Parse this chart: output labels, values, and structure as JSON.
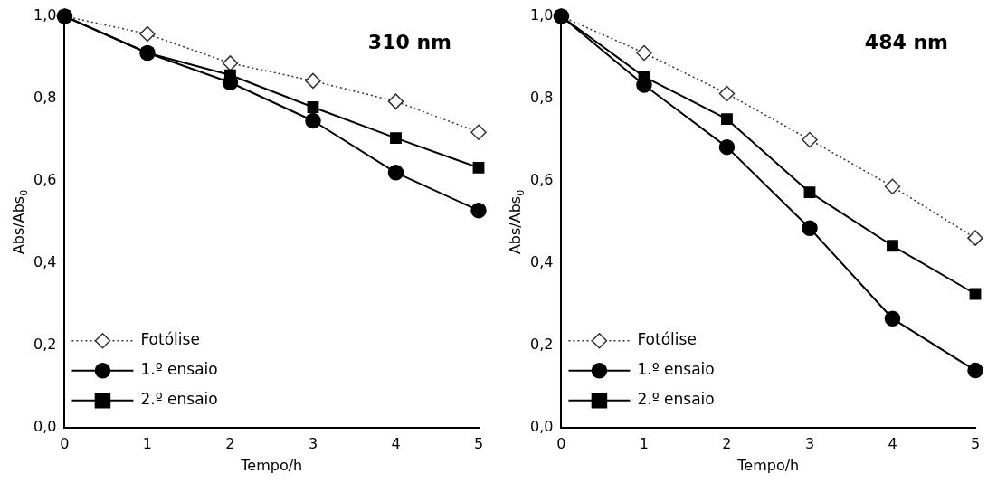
{
  "chart_data": [
    {
      "type": "line",
      "annotations": [
        "310 nm"
      ],
      "xlabel": "Tempo/h",
      "ylabel": "Abs/Abs$_{0}$",
      "x": [
        0,
        1,
        2,
        3,
        4,
        5
      ],
      "xlim": [
        0,
        5
      ],
      "xticks": [
        0,
        1,
        2,
        3,
        4,
        5
      ],
      "ylim": [
        0,
        1
      ],
      "yticks": [
        {
          "value": 0,
          "label": "0,0"
        },
        {
          "value": 0.2,
          "label": "0,2"
        },
        {
          "value": 0.4,
          "label": "0,4"
        },
        {
          "value": 0.6,
          "label": "0,6"
        },
        {
          "value": 0.8,
          "label": "0,8"
        },
        {
          "value": 1,
          "label": "1,0"
        }
      ],
      "grid": false,
      "legend": "bottom left",
      "series": [
        {
          "name": "Fotólise",
          "color": "#333333",
          "marker": "diamond",
          "line_style": "dotted",
          "values": [
            1.0,
            0.957,
            0.886,
            0.843,
            0.793,
            0.718
          ]
        },
        {
          "name": "1.º ensaio",
          "color": "#000000",
          "marker": "circle",
          "line_style": "solid",
          "values": [
            1.0,
            0.911,
            0.839,
            0.746,
            0.62,
            0.528
          ]
        },
        {
          "name": "2.º ensaio",
          "color": "#000000",
          "marker": "square",
          "line_style": "solid",
          "values": [
            1.0,
            0.911,
            0.857,
            0.779,
            0.704,
            0.632
          ]
        }
      ]
    },
    {
      "type": "line",
      "annotations": [
        "484 nm"
      ],
      "xlabel": "Tempo/h",
      "ylabel": "Abs/Abs$_{0}$",
      "x": [
        0,
        1,
        2,
        3,
        4,
        5
      ],
      "xlim": [
        0,
        5
      ],
      "xticks": [
        0,
        1,
        2,
        3,
        4,
        5
      ],
      "ylim": [
        0,
        1
      ],
      "yticks": [
        {
          "value": 0,
          "label": "0,0"
        },
        {
          "value": 0.2,
          "label": "0,2"
        },
        {
          "value": 0.4,
          "label": "0,4"
        },
        {
          "value": 0.6,
          "label": "0,6"
        },
        {
          "value": 0.8,
          "label": "0,8"
        },
        {
          "value": 1,
          "label": "1,0"
        }
      ],
      "grid": false,
      "legend": "bottom left",
      "series": [
        {
          "name": "Fotólise",
          "color": "#333333",
          "marker": "diamond",
          "line_style": "dotted",
          "values": [
            1.0,
            0.911,
            0.812,
            0.7,
            0.586,
            0.461
          ]
        },
        {
          "name": "1.º ensaio",
          "color": "#000000",
          "marker": "circle",
          "line_style": "solid",
          "values": [
            1.0,
            0.833,
            0.682,
            0.485,
            0.265,
            0.139
          ]
        },
        {
          "name": "2.º ensaio",
          "color": "#000000",
          "marker": "square",
          "line_style": "solid",
          "values": [
            1.0,
            0.853,
            0.75,
            0.572,
            0.442,
            0.325
          ]
        }
      ]
    }
  ]
}
